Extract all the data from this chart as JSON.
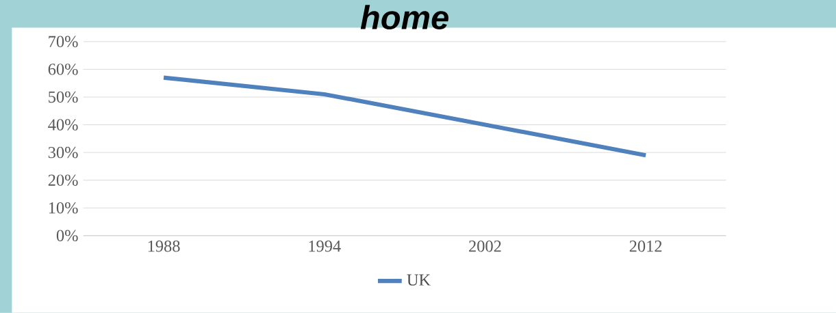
{
  "chart_data": {
    "type": "line",
    "title": "home",
    "categories": [
      "1988",
      "1994",
      "2002",
      "2012"
    ],
    "series": [
      {
        "name": "UK",
        "color": "#4f81bd",
        "values": [
          57,
          51,
          40,
          29
        ]
      }
    ],
    "ylim": [
      0,
      70
    ],
    "yticks": [
      {
        "value": 0,
        "label": "0%"
      },
      {
        "value": 10,
        "label": "10%"
      },
      {
        "value": 20,
        "label": "20%"
      },
      {
        "value": 30,
        "label": "30%"
      },
      {
        "value": 40,
        "label": "40%"
      },
      {
        "value": 50,
        "label": "50%"
      },
      {
        "value": 60,
        "label": "60%"
      },
      {
        "value": 70,
        "label": "70%"
      }
    ],
    "grid": "y",
    "legend": "bottom",
    "marker": "none",
    "line_style": "solid"
  }
}
